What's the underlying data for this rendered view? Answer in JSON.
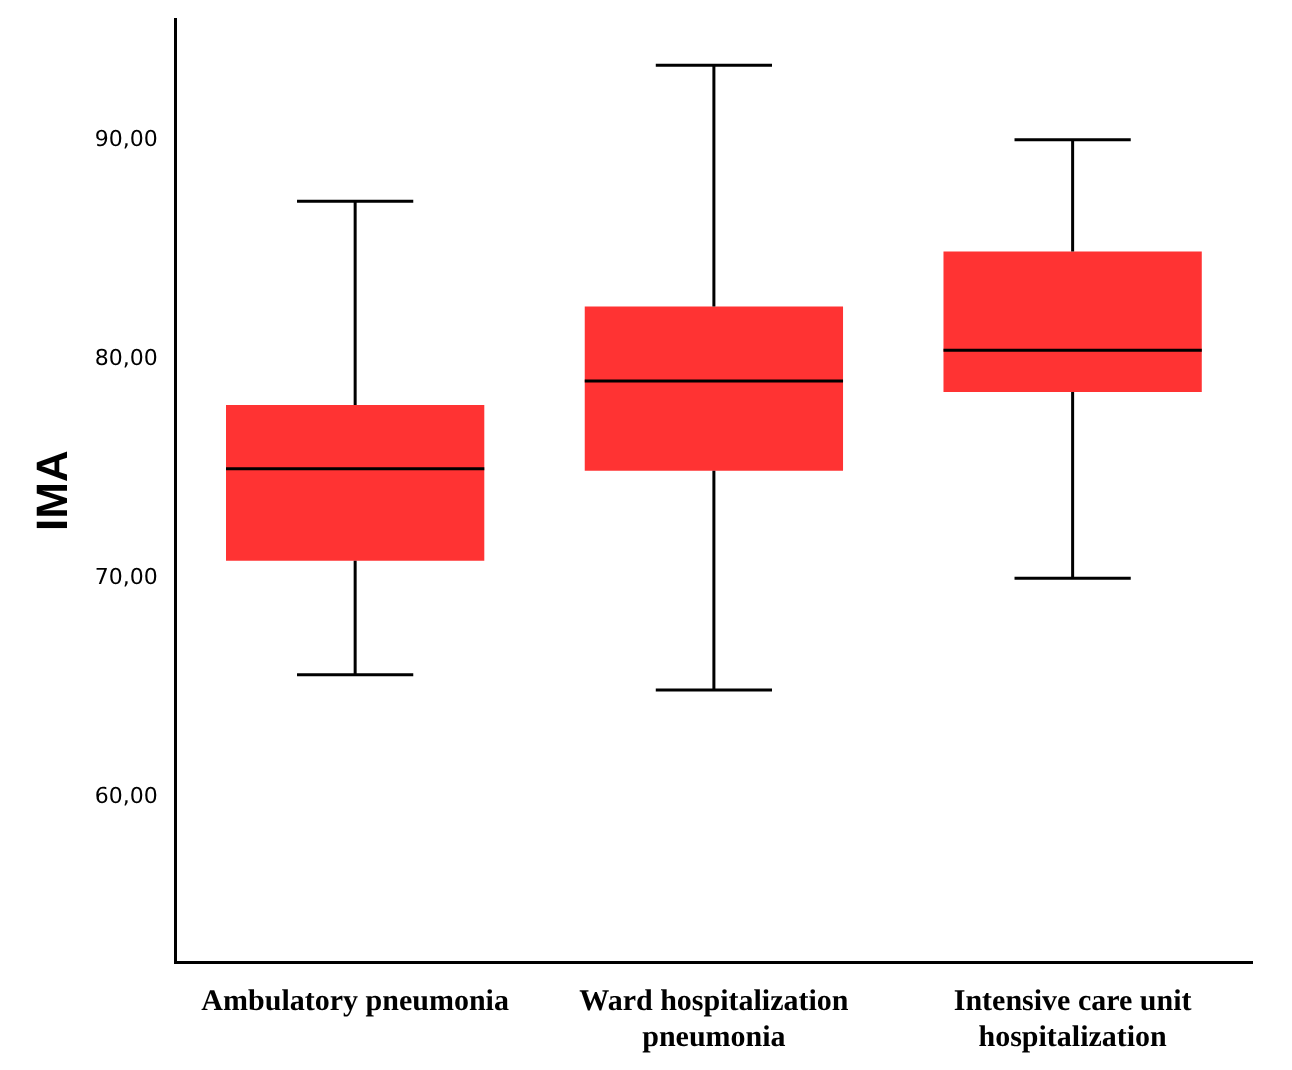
{
  "chart_data": {
    "type": "box",
    "ylabel": "IMA",
    "categories": [
      "Ambulatory pneumonia",
      "Ward hospitalization pneumonia",
      "Intensive care unit hospitalization"
    ],
    "color": "#ff3333",
    "boxes": [
      {
        "low": 65.6,
        "q1": 70.8,
        "median": 75.0,
        "q3": 77.9,
        "high": 87.2
      },
      {
        "low": 64.9,
        "q1": 74.9,
        "median": 79.0,
        "q3": 82.4,
        "high": 93.4
      },
      {
        "low": 70.0,
        "q1": 78.5,
        "median": 80.4,
        "q3": 84.9,
        "high": 90.0
      }
    ],
    "ylim": [
      52.5,
      95.5
    ],
    "yticks": [
      {
        "value": 60,
        "label": "60,00"
      },
      {
        "value": 70,
        "label": "70,00"
      },
      {
        "value": 80,
        "label": "80,00"
      },
      {
        "value": 90,
        "label": "90,00"
      }
    ]
  }
}
